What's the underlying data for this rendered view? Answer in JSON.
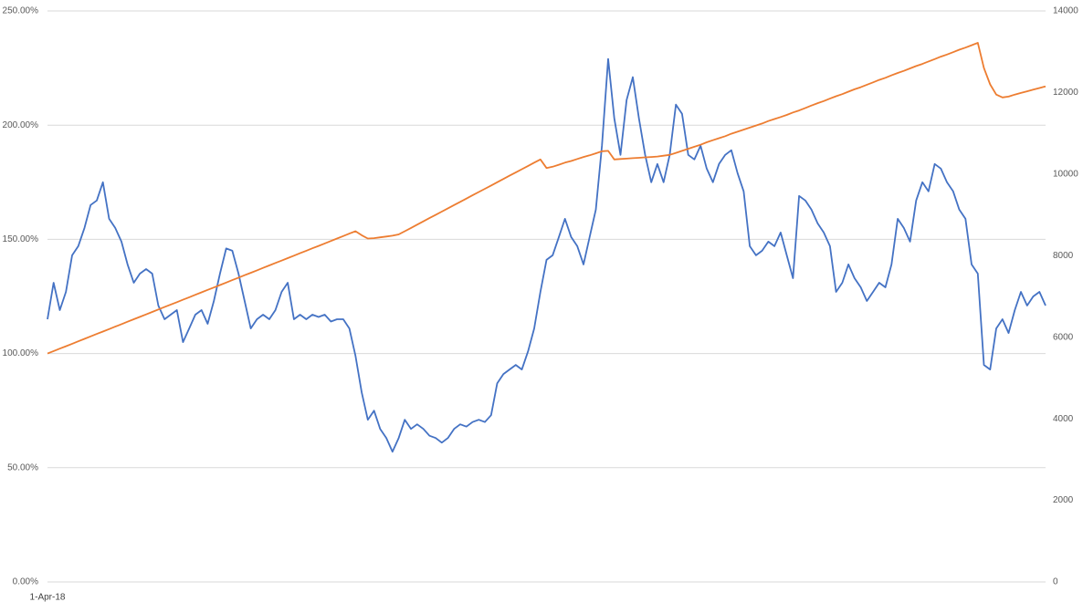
{
  "chart_data": {
    "type": "line",
    "categories": [
      "1-Apr-18",
      null,
      null,
      null,
      null,
      null,
      null,
      null,
      null,
      null,
      null,
      null,
      null,
      null,
      null,
      null,
      null,
      null,
      null,
      null,
      null,
      null,
      null,
      null,
      null,
      null,
      null,
      null,
      null,
      null,
      null,
      null,
      null,
      null,
      null,
      null,
      null,
      null,
      null,
      null,
      null,
      null,
      null,
      null,
      null,
      null,
      null,
      null,
      null,
      null,
      null,
      null,
      null,
      null,
      null,
      null,
      null,
      null,
      null,
      null,
      null,
      null,
      null,
      null,
      null,
      null,
      null,
      null,
      null,
      null,
      null,
      null,
      null,
      null,
      null,
      null,
      null,
      null,
      null,
      null,
      null,
      null,
      null,
      null,
      null,
      null,
      null,
      null,
      null,
      null,
      null,
      null,
      null,
      null,
      null,
      null,
      null,
      null,
      null,
      null,
      null,
      null,
      null,
      null,
      null,
      null,
      null,
      null,
      null,
      null,
      null,
      null,
      null,
      null,
      null,
      null,
      null,
      null,
      null,
      null,
      null,
      null,
      null,
      null,
      null,
      null,
      null,
      null,
      null,
      null,
      null,
      null,
      null,
      null,
      null,
      null,
      null,
      null,
      null,
      null,
      null,
      null,
      null,
      null,
      null,
      null,
      null,
      null,
      null,
      null,
      null,
      null,
      null,
      null,
      null,
      null,
      null,
      null,
      null,
      null,
      null,
      null,
      null
    ],
    "series": [
      {
        "color": "#4472c4",
        "values": [
          115,
          131,
          119,
          127,
          143,
          147,
          155,
          165,
          167,
          175,
          159,
          155,
          149,
          139,
          131,
          135,
          137,
          135,
          121,
          115,
          117,
          119,
          105,
          111,
          117,
          119,
          113,
          123,
          135,
          146,
          145,
          135,
          123,
          111,
          115,
          117,
          115,
          119,
          127,
          131,
          115,
          117,
          115,
          117,
          116,
          117,
          114,
          115,
          115,
          111,
          99,
          83,
          71,
          75,
          67,
          63,
          57,
          63,
          71,
          67,
          69,
          67,
          64,
          63,
          61,
          63,
          67,
          69,
          68,
          70,
          71,
          70,
          73,
          87,
          91,
          93,
          95,
          93,
          101,
          111,
          127,
          141,
          143,
          151,
          159,
          151,
          147,
          139,
          151,
          163,
          191,
          229,
          203,
          187,
          211,
          221,
          203,
          187,
          175,
          183,
          175,
          187,
          209,
          205,
          187,
          185,
          191,
          181,
          175,
          183,
          187,
          189,
          179,
          171,
          147,
          143,
          145,
          149,
          147,
          153,
          143,
          133,
          169,
          167,
          163,
          157,
          153,
          147,
          127,
          131,
          139,
          133,
          129,
          123,
          127,
          131,
          129,
          139,
          159,
          155,
          149,
          167,
          175,
          171,
          183,
          181,
          175,
          171,
          163,
          159,
          139,
          135,
          95,
          93,
          111,
          115,
          109,
          119,
          127,
          121,
          125,
          127,
          121
        ]
      },
      {
        "color": "#ed7d31",
        "axis": "y2",
        "values": [
          5600,
          5660,
          5720,
          5780,
          5840,
          5900,
          5960,
          6020,
          6080,
          6140,
          6200,
          6260,
          6320,
          6380,
          6440,
          6500,
          6560,
          6620,
          6680,
          6740,
          6800,
          6860,
          6920,
          6980,
          7040,
          7100,
          7160,
          7220,
          7280,
          7340,
          7400,
          7460,
          7520,
          7580,
          7640,
          7700,
          7760,
          7820,
          7880,
          7940,
          8000,
          8060,
          8120,
          8180,
          8240,
          8300,
          8360,
          8420,
          8480,
          8540,
          8600,
          8500,
          8420,
          8430,
          8450,
          8470,
          8490,
          8520,
          8600,
          8680,
          8760,
          8840,
          8920,
          9000,
          9080,
          9160,
          9240,
          9320,
          9400,
          9480,
          9560,
          9640,
          9720,
          9800,
          9880,
          9960,
          10040,
          10120,
          10200,
          10280,
          10360,
          10150,
          10180,
          10230,
          10280,
          10320,
          10370,
          10420,
          10460,
          10510,
          10560,
          10570,
          10360,
          10370,
          10380,
          10390,
          10400,
          10410,
          10420,
          10430,
          10450,
          10470,
          10520,
          10570,
          10620,
          10670,
          10720,
          10780,
          10830,
          10880,
          10930,
          10990,
          11040,
          11090,
          11140,
          11190,
          11240,
          11300,
          11350,
          11400,
          11450,
          11510,
          11560,
          11620,
          11680,
          11740,
          11790,
          11850,
          11910,
          11960,
          12020,
          12080,
          12130,
          12190,
          12250,
          12310,
          12360,
          12420,
          12480,
          12530,
          12590,
          12650,
          12700,
          12760,
          12820,
          12880,
          12930,
          12990,
          13050,
          13100,
          13160,
          13220,
          12600,
          12200,
          11950,
          11880,
          11900,
          11950,
          11990,
          12030,
          12070,
          12110,
          12150
        ]
      }
    ],
    "ylim": [
      0,
      250
    ],
    "yticks": [
      {
        "value": 0,
        "label": "0.00%"
      },
      {
        "value": 50,
        "label": "50.00%"
      },
      {
        "value": 100,
        "label": "100.00%"
      },
      {
        "value": 150,
        "label": "150.00%"
      },
      {
        "value": 200,
        "label": "200.00%"
      },
      {
        "value": 250,
        "label": "250.00%"
      }
    ],
    "y2lim": [
      0,
      14000
    ],
    "y2ticks": [
      0,
      2000,
      4000,
      6000,
      8000,
      10000,
      12000,
      14000
    ],
    "grid": true
  }
}
